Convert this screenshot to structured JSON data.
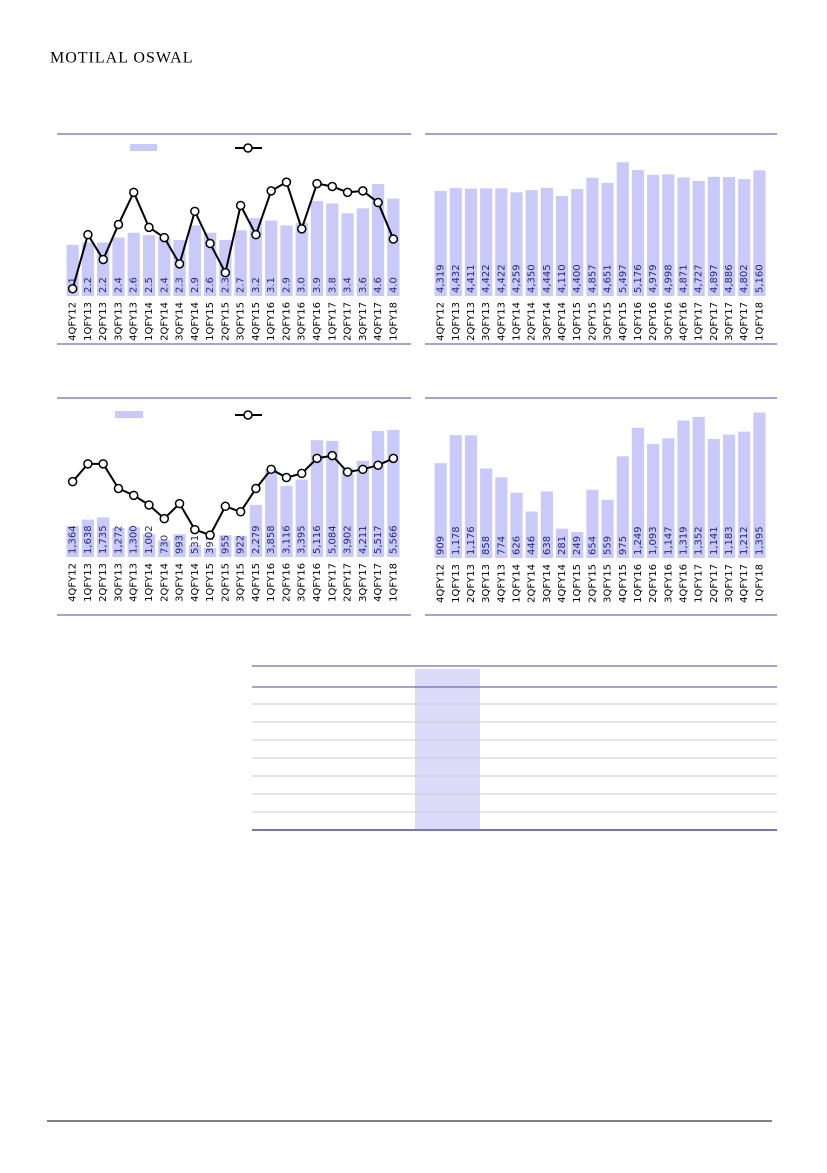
{
  "header": {
    "brand": "MOTILAL OSWAL"
  },
  "chart_data": [
    {
      "type": "combo",
      "categories": [
        "4QFY12",
        "1QFY13",
        "2QFY13",
        "3QFY13",
        "4QFY13",
        "1QFY14",
        "2QFY14",
        "3QFY14",
        "4QFY14",
        "1QFY15",
        "2QFY15",
        "3QFY15",
        "4QFY15",
        "1QFY16",
        "2QFY16",
        "3QFY16",
        "4QFY16",
        "1QFY17",
        "2QFY17",
        "3QFY17",
        "4QFY17",
        "1QFY18"
      ],
      "ylim": [
        0,
        6
      ],
      "y2lim": [
        0,
        10
      ],
      "series": [
        {
          "type": "bar",
          "color": "#c9c9fa",
          "values": [
            2.1,
            2.2,
            2.2,
            2.4,
            2.6,
            2.5,
            2.4,
            2.3,
            2.9,
            2.6,
            2.3,
            2.7,
            3.2,
            3.1,
            2.9,
            3.0,
            3.9,
            3.8,
            3.4,
            3.6,
            4.6,
            4.0
          ],
          "value_labels": [
            "2.1",
            "2.2",
            "2.2",
            "2.4",
            "2.6",
            "2.5",
            "2.4",
            "2.3",
            "2.9",
            "2.6",
            "2.3",
            "2.7",
            "3.2",
            "3.1",
            "2.9",
            "3.0",
            "3.9",
            "3.8",
            "3.4",
            "3.6",
            "4.6",
            "4.0"
          ]
        },
        {
          "type": "line",
          "axis": "y2",
          "color": "#000000",
          "values": [
            0.5,
            4.2,
            2.5,
            4.9,
            7.1,
            4.7,
            4.0,
            2.2,
            5.8,
            3.6,
            1.6,
            6.2,
            4.2,
            7.2,
            7.8,
            4.6,
            7.7,
            7.5,
            7.1,
            7.2,
            6.4,
            3.9
          ]
        }
      ]
    },
    {
      "type": "combo",
      "categories": [
        "4QFY12",
        "1QFY13",
        "2QFY13",
        "3QFY13",
        "4QFY13",
        "1QFY14",
        "2QFY14",
        "3QFY14",
        "4QFY14",
        "1QFY15",
        "2QFY15",
        "3QFY15",
        "4QFY15",
        "1QFY16",
        "2QFY16",
        "3QFY16",
        "4QFY16",
        "1QFY17",
        "2QFY17",
        "3QFY17",
        "4QFY17",
        "1QFY18"
      ],
      "ylim": [
        0,
        6000
      ],
      "series": [
        {
          "type": "bar",
          "color": "#c9c9fa",
          "values": [
            4319,
            4432,
            4411,
            4422,
            4422,
            4259,
            4350,
            4445,
            4110,
            4400,
            4857,
            4651,
            5497,
            5176,
            4979,
            4998,
            4871,
            4727,
            4897,
            4886,
            4802,
            5160
          ],
          "value_labels": [
            "4,319",
            "4,432",
            "4,411",
            "4,422",
            "4,422",
            "4,259",
            "4,350",
            "4,445",
            "4,110",
            "4,400",
            "4,857",
            "4,651",
            "5,497",
            "5,176",
            "4,979",
            "4,998",
            "4,871",
            "4,727",
            "4,897",
            "4,886",
            "4,802",
            "5,160"
          ]
        }
      ]
    },
    {
      "type": "combo",
      "categories": [
        "4QFY12",
        "1QFY13",
        "2QFY13",
        "3QFY13",
        "4QFY13",
        "1QFY14",
        "2QFY14",
        "3QFY14",
        "4QFY14",
        "1QFY15",
        "2QFY15",
        "3QFY15",
        "4QFY15",
        "1QFY16",
        "2QFY16",
        "3QFY16",
        "4QFY16",
        "1QFY17",
        "2QFY17",
        "3QFY17",
        "4QFY17",
        "1QFY18"
      ],
      "ylim": [
        0,
        6000
      ],
      "y2lim": [
        0,
        10
      ],
      "series": [
        {
          "type": "bar",
          "color": "#c9c9fa",
          "values": [
            1364,
            1638,
            1735,
            1272,
            1300,
            1002,
            730,
            993,
            531,
            391,
            955,
            922,
            2279,
            3858,
            3116,
            3395,
            5116,
            5084,
            3902,
            4211,
            5517,
            5566
          ],
          "value_labels": [
            "1,364",
            "1,638",
            "1,735",
            "1,272",
            "1,300",
            "1,002",
            "730",
            "993",
            "531",
            "391",
            "955",
            "922",
            "2,279",
            "3,858",
            "3,116",
            "3,395",
            "5,116",
            "5,084",
            "3,902",
            "4,211",
            "5,517",
            "5,566"
          ]
        },
        {
          "type": "line",
          "axis": "y2",
          "color": "#000000",
          "values": [
            5.5,
            6.8,
            6.8,
            5.0,
            4.5,
            3.8,
            2.8,
            3.9,
            2.0,
            1.6,
            3.7,
            3.3,
            5.0,
            6.4,
            5.8,
            6.1,
            7.2,
            7.4,
            6.2,
            6.4,
            6.7,
            7.2
          ]
        }
      ]
    },
    {
      "type": "combo",
      "categories": [
        "4QFY12",
        "1QFY13",
        "2QFY13",
        "3QFY13",
        "4QFY13",
        "1QFY14",
        "2QFY14",
        "3QFY14",
        "4QFY14",
        "1QFY15",
        "2QFY15",
        "3QFY15",
        "4QFY15",
        "1QFY16",
        "2QFY16",
        "3QFY16",
        "4QFY16",
        "1QFY17",
        "2QFY17",
        "3QFY17",
        "4QFY17",
        "1QFY18"
      ],
      "ylim": [
        0,
        1400
      ],
      "series": [
        {
          "type": "bar",
          "color": "#c9c9fa",
          "values": [
            909,
            1178,
            1176,
            858,
            774,
            626,
            446,
            638,
            281,
            249,
            654,
            559,
            975,
            1249,
            1093,
            1147,
            1319,
            1352,
            1141,
            1183,
            1212,
            1395
          ],
          "value_labels": [
            "909",
            "1,178",
            "1,176",
            "858",
            "774",
            "626",
            "446",
            "638",
            "281",
            "249",
            "654",
            "559",
            "975",
            "1,249",
            "1,093",
            "1,147",
            "1,319",
            "1,352",
            "1,141",
            "1,183",
            "1,212",
            "1,395"
          ]
        }
      ]
    }
  ]
}
